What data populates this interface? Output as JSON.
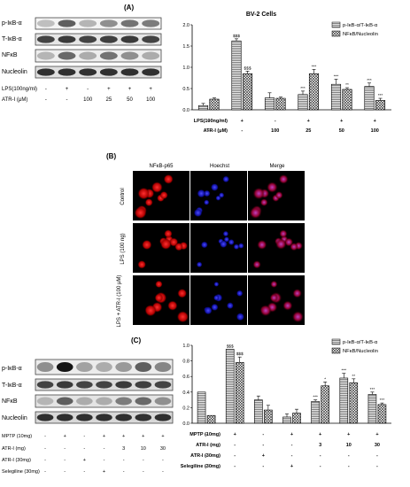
{
  "figure": {
    "panelA": {
      "label": "(A)",
      "blot_labels": [
        "p-IκB-α",
        "T-IκB-α",
        "NFκB",
        "Nucleolin"
      ],
      "lps_label": "LPS(100ng/ml)",
      "atr_label": "ATR-I (μM)",
      "lps_row": [
        "-",
        "+",
        "-",
        "+",
        "+",
        "+"
      ],
      "atr_row": [
        "-",
        "-",
        "100",
        "25",
        "50",
        "100"
      ]
    },
    "panelB": {
      "label": "(B)",
      "col_headers": [
        "NFκB-p65",
        "Hoechst",
        "Merge"
      ],
      "row_labels": [
        "Control",
        "LPS (100 ng)",
        "LPS + ATR-I (100 μM)"
      ]
    },
    "panelC": {
      "label": "(C)",
      "blot_labels": [
        "p-IκB-α",
        "T-IκB-α",
        "NFκB",
        "Nucleolin"
      ],
      "mptp_label": "MPTP (10mg)",
      "atr_label": "ATR-I (mg)",
      "atr30_label": "ATR-I (30mg)",
      "sel_label": "Selegiline (30mg)",
      "mptp_row": [
        "-",
        "+",
        "-",
        "+",
        "+",
        "+",
        "+"
      ],
      "atr_row": [
        "-",
        "-",
        "-",
        "-",
        "3",
        "10",
        "30"
      ],
      "atr30_row": [
        "-",
        "-",
        "+",
        "-",
        "-",
        "-",
        "-"
      ],
      "sel_row": [
        "-",
        "-",
        "-",
        "+",
        "-",
        "-",
        "-"
      ]
    }
  },
  "chart_data": [
    {
      "type": "bar",
      "title": "BV-2 Cells",
      "ylim": [
        0,
        2
      ],
      "yticks": [
        "0.0",
        "0.5",
        "1.0",
        "1.5",
        "2.0"
      ],
      "categories": [
        "1",
        "2",
        "3",
        "4",
        "5",
        "6"
      ],
      "series": [
        {
          "name": "p-IκB-α/T-IκB-α",
          "values": [
            0.1,
            1.62,
            0.28,
            0.36,
            0.6,
            0.55
          ],
          "errors": [
            0.05,
            0.05,
            0.12,
            0.08,
            0.12,
            0.08
          ],
          "sig": [
            "",
            "$$$",
            "",
            "***",
            "***",
            "***"
          ]
        },
        {
          "name": "NFκB/Nucleolin",
          "values": [
            0.25,
            0.85,
            0.27,
            0.85,
            0.48,
            0.22
          ],
          "errors": [
            0.03,
            0.06,
            0.03,
            0.1,
            0.04,
            0.05
          ],
          "sig": [
            "",
            "$$$",
            "",
            "***",
            "**",
            "***"
          ]
        }
      ],
      "row_labels": [
        "LPS(100ng/ml)",
        "ATR-I (μM)"
      ],
      "rows": [
        [
          "-",
          "+",
          "-",
          "+",
          "+",
          "+"
        ],
        [
          "-",
          "-",
          "100",
          "25",
          "50",
          "100"
        ]
      ],
      "legend": "top-right"
    },
    {
      "type": "bar",
      "ylim": [
        0,
        1
      ],
      "yticks": [
        "0.0",
        "0.2",
        "0.4",
        "0.6",
        "0.8",
        "1.0"
      ],
      "categories": [
        "1",
        "2",
        "3",
        "4",
        "5",
        "6",
        "7"
      ],
      "series": [
        {
          "name": "p-IκB-α/T-IκB-α",
          "values": [
            0.4,
            0.95,
            0.3,
            0.08,
            0.28,
            0.58,
            0.37
          ],
          "errors": [
            0.0,
            0.0,
            0.05,
            0.04,
            0.02,
            0.06,
            0.03
          ],
          "sig": [
            "",
            "$$$",
            "",
            "",
            "***",
            "***",
            "***"
          ]
        },
        {
          "name": "NFκB/Nucleolin",
          "values": [
            0.1,
            0.78,
            0.17,
            0.13,
            0.48,
            0.52,
            0.24
          ],
          "errors": [
            0.0,
            0.07,
            0.06,
            0.05,
            0.05,
            0.05,
            0.02
          ],
          "sig": [
            "",
            "$$$",
            "",
            "",
            "*",
            "**",
            "***"
          ]
        }
      ],
      "row_labels": [
        "MPTP (10mg)",
        "ATR-I (mg)",
        "ATR-I (30mg)",
        "Selegiline (30mg)"
      ],
      "rows": [
        [
          "-",
          "+",
          "-",
          "+",
          "+",
          "+",
          "+"
        ],
        [
          "-",
          "-",
          "-",
          "-",
          "3",
          "10",
          "30"
        ],
        [
          "-",
          "-",
          "+",
          "-",
          "-",
          "-",
          "-"
        ],
        [
          "-",
          "-",
          "-",
          "+",
          "-",
          "-",
          "-"
        ]
      ],
      "legend": "top-right"
    }
  ]
}
